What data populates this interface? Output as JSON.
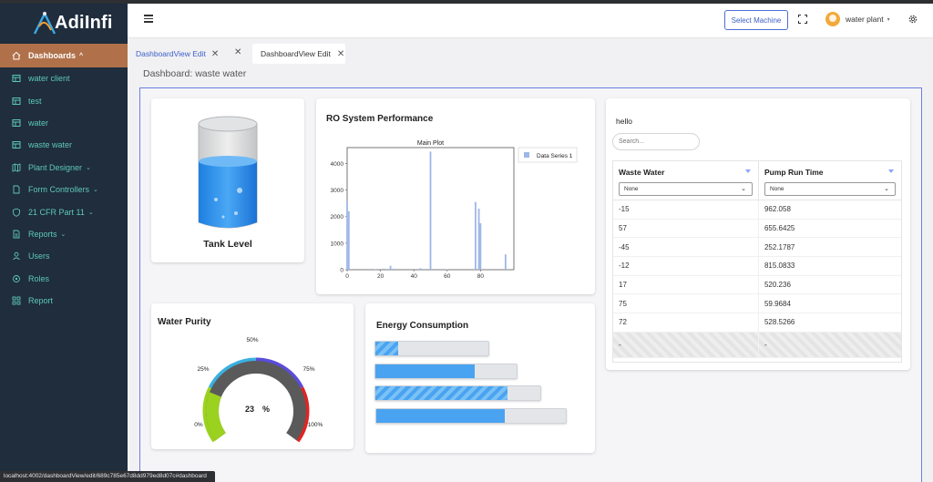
{
  "app": {
    "name": "AdiInfi",
    "logo_text": "AdiInfi"
  },
  "sidebar": {
    "items": [
      {
        "label": "Dashboards",
        "icon": "home-icon",
        "active": true,
        "chevron": "^"
      },
      {
        "label": "water client",
        "icon": "table-icon"
      },
      {
        "label": "test",
        "icon": "table-icon"
      },
      {
        "label": "water",
        "icon": "table-icon"
      },
      {
        "label": "waste water",
        "icon": "table-icon"
      },
      {
        "label": "Plant Designer",
        "icon": "map-icon",
        "chevron": "v"
      },
      {
        "label": "Form Controllers",
        "icon": "document-icon",
        "chevron": "v"
      },
      {
        "label": "21 CFR Part 11",
        "icon": "shield-icon",
        "chevron": "v"
      },
      {
        "label": "Reports",
        "icon": "file-icon",
        "chevron": "v"
      },
      {
        "label": "Users",
        "icon": "user-icon"
      },
      {
        "label": "Roles",
        "icon": "roles-icon"
      },
      {
        "label": "Report",
        "icon": "grid-icon"
      }
    ]
  },
  "header": {
    "select_machine_label": "Select Machine",
    "user_name": "water plant",
    "user_dropdown": "▾"
  },
  "tabs": [
    {
      "label": "DashboardView Edit",
      "active": false
    },
    {
      "label": "DashboardView Edit",
      "active": true
    }
  ],
  "dashboard": {
    "title": "Dashboard: waste water"
  },
  "tank": {
    "label": "Tank Level",
    "level_fraction": 0.62
  },
  "ro_chart": {
    "card_title": "RO System Performance"
  },
  "chart_data": {
    "type": "bar",
    "title": "Main Plot",
    "legend": [
      "Data Series 1"
    ],
    "legend_position": "top-right",
    "xlim": [
      0,
      100
    ],
    "ylim": [
      0,
      4600
    ],
    "xticks": [
      0,
      20,
      40,
      60,
      80
    ],
    "yticks": [
      0,
      1000,
      2000,
      3000,
      4000
    ],
    "x": [
      0,
      1,
      11,
      17,
      22,
      26,
      28,
      33,
      44,
      47,
      50,
      55,
      60,
      77,
      79,
      80,
      95
    ],
    "values": [
      2550,
      2200,
      30,
      20,
      40,
      150,
      40,
      30,
      60,
      30,
      4450,
      30,
      20,
      2550,
      2300,
      1750,
      580
    ],
    "color": "#9fb6e8"
  },
  "table": {
    "title": "hello",
    "search_placeholder": "Search...",
    "columns": [
      {
        "header": "Waste Water",
        "filter": "None"
      },
      {
        "header": "Pump Run Time",
        "filter": "None"
      }
    ],
    "rows": [
      [
        "-15",
        "962.058"
      ],
      [
        "57",
        "655.6425"
      ],
      [
        "-45",
        "252.1787"
      ],
      [
        "-12",
        "815.0833"
      ],
      [
        "17",
        "520.236"
      ],
      [
        "75",
        "59.9684"
      ],
      [
        "72",
        "528.5266"
      ]
    ],
    "blank_row": [
      "-",
      "-"
    ]
  },
  "purity": {
    "title": "Water Purity",
    "value": "23",
    "unit": "%",
    "labels": {
      "p0": "0%",
      "p25": "25%",
      "p50": "50%",
      "p75": "75%",
      "p100": "100%"
    },
    "colors": {
      "green": "#9bd21f",
      "cyan": "#3bb0e0",
      "blue": "#5a4cdc",
      "red": "#e02424",
      "needle": "#5a5a5a"
    },
    "value_fraction": 0.23
  },
  "energy": {
    "title": "Energy Consumption",
    "bars": [
      {
        "fraction": 0.2,
        "striped": true
      },
      {
        "fraction": 0.7,
        "striped": false
      },
      {
        "fraction": 0.8,
        "striped": true
      },
      {
        "fraction": 0.68,
        "striped": false
      }
    ]
  },
  "status_url": "localhost:4002/dashboardView/edit/689c785e67d8dd979ed8d07c#dashboard"
}
